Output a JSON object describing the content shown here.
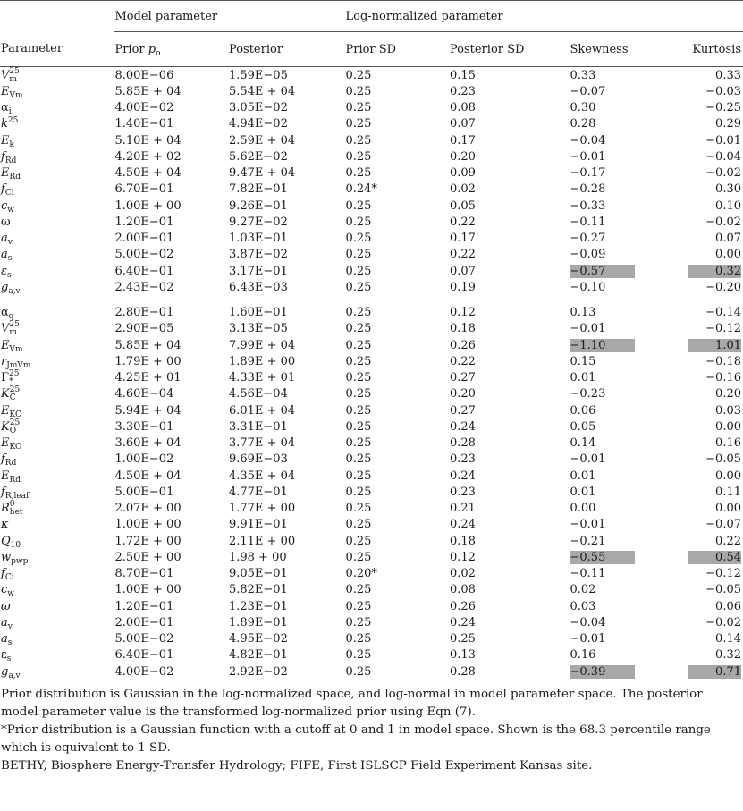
{
  "header": {
    "group_model": "Model parameter",
    "group_log": "Log-normalized parameter",
    "parameter": "Parameter",
    "prior_prefix": "Prior ",
    "prior_symbol": "p",
    "prior_sub": "o",
    "posterior": "Posterior",
    "prior_sd": "Prior SD",
    "posterior_sd": "Posterior SD",
    "skewness": "Skewness",
    "kurtosis": "Kurtosis"
  },
  "section1": [
    {
      "param": {
        "base": "V",
        "sub": "m",
        "sup": "25",
        "italic": true
      },
      "prior": "8.00E−06",
      "posterior": "1.59E−05",
      "prior_sd": "0.25",
      "posterior_sd": "0.15",
      "skewness": "0.33",
      "kurtosis": "0.33",
      "highlight": false
    },
    {
      "param": {
        "base": "E",
        "sub": "Vm",
        "italic": true
      },
      "prior": "5.85E + 04",
      "posterior": "5.54E + 04",
      "prior_sd": "0.25",
      "posterior_sd": "0.23",
      "skewness": "−0.07",
      "kurtosis": "−0.03",
      "highlight": false
    },
    {
      "param": {
        "base": "α",
        "sub": "i",
        "italic": false
      },
      "prior": "4.00E−02",
      "posterior": "3.05E−02",
      "prior_sd": "0.25",
      "posterior_sd": "0.08",
      "skewness": "0.30",
      "kurtosis": "−0.25",
      "highlight": false
    },
    {
      "param": {
        "base": "k",
        "sup": "25",
        "italic": true
      },
      "prior": "1.40E−01",
      "posterior": "4.94E−02",
      "prior_sd": "0.25",
      "posterior_sd": "0.07",
      "skewness": "0.28",
      "kurtosis": "0.29",
      "highlight": false
    },
    {
      "param": {
        "base": "E",
        "sub": "k",
        "italic": true
      },
      "prior": "5.10E + 04",
      "posterior": "2.59E + 04",
      "prior_sd": "0.25",
      "posterior_sd": "0.17",
      "skewness": "−0.04",
      "kurtosis": "−0.01",
      "highlight": false
    },
    {
      "param": {
        "base": "f",
        "sub": "Rd",
        "italic": true
      },
      "prior": "4.20E + 02",
      "posterior": "5.62E−02",
      "prior_sd": "0.25",
      "posterior_sd": "0.20",
      "skewness": "−0.01",
      "kurtosis": "−0.04",
      "highlight": false
    },
    {
      "param": {
        "base": "E",
        "sub": "Rd",
        "italic": true
      },
      "prior": "4.50E + 04",
      "posterior": "9.47E + 04",
      "prior_sd": "0.25",
      "posterior_sd": "0.09",
      "skewness": "−0.17",
      "kurtosis": "−0.02",
      "highlight": false
    },
    {
      "param": {
        "base": "f",
        "sub": "Ci",
        "italic": true
      },
      "prior": "6.70E−01",
      "posterior": "7.82E−01",
      "prior_sd": "0.24*",
      "posterior_sd": "0.02",
      "skewness": "−0.28",
      "kurtosis": "0.30",
      "highlight": false
    },
    {
      "param": {
        "base": "c",
        "sub": "w",
        "italic": true
      },
      "prior": "1.00E + 00",
      "posterior": "9.26E−01",
      "prior_sd": "0.25",
      "posterior_sd": "0.05",
      "skewness": "−0.33",
      "kurtosis": "0.10",
      "highlight": false
    },
    {
      "param": {
        "base": "ω",
        "italic": false
      },
      "prior": "1.20E−01",
      "posterior": "9.27E−02",
      "prior_sd": "0.25",
      "posterior_sd": "0.22",
      "skewness": "−0.11",
      "kurtosis": "−0.02",
      "highlight": false
    },
    {
      "param": {
        "base": "a",
        "sub": "v",
        "italic": true
      },
      "prior": "2.00E−01",
      "posterior": "1.03E−01",
      "prior_sd": "0.25",
      "posterior_sd": "0.17",
      "skewness": "−0.27",
      "kurtosis": "0.07",
      "highlight": false
    },
    {
      "param": {
        "base": "a",
        "sub": "s",
        "italic": true
      },
      "prior": "5.00E−02",
      "posterior": "3.87E−02",
      "prior_sd": "0.25",
      "posterior_sd": "0.22",
      "skewness": "−0.09",
      "kurtosis": "0.00",
      "highlight": false
    },
    {
      "param": {
        "base": "ε",
        "sub": "s",
        "italic": true
      },
      "prior": "6.40E−01",
      "posterior": "3.17E−01",
      "prior_sd": "0.25",
      "posterior_sd": "0.07",
      "skewness": "−0.57",
      "kurtosis": "0.32",
      "highlight": true
    },
    {
      "param": {
        "base": "g",
        "sub": "a,v",
        "italic": true
      },
      "prior": "2.43E−02",
      "posterior": "6.43E−03",
      "prior_sd": "0.25",
      "posterior_sd": "0.19",
      "skewness": "−0.10",
      "kurtosis": "−0.20",
      "highlight": false
    }
  ],
  "section2": [
    {
      "param": {
        "base": "α",
        "sub": "q",
        "italic": false
      },
      "prior": "2.80E−01",
      "posterior": "1.60E−01",
      "prior_sd": "0.25",
      "posterior_sd": "0.12",
      "skewness": "0.13",
      "kurtosis": "−0.14",
      "highlight": false
    },
    {
      "param": {
        "base": "V",
        "sub": "m",
        "sup": "25",
        "italic": true
      },
      "prior": "2.90E−05",
      "posterior": "3.13E−05",
      "prior_sd": "0.25",
      "posterior_sd": "0.18",
      "skewness": "−0.01",
      "kurtosis": "−0.12",
      "highlight": false
    },
    {
      "param": {
        "base": "E",
        "sub": "Vm",
        "italic": true
      },
      "prior": "5.85E + 04",
      "posterior": "7.99E + 04",
      "prior_sd": "0.25",
      "posterior_sd": "0.26",
      "skewness": "−1.10",
      "kurtosis": "1.01",
      "highlight": true
    },
    {
      "param": {
        "base": "r",
        "sub": "JmVm",
        "italic": true
      },
      "prior": "1.79E + 00",
      "posterior": "1.89E + 00",
      "prior_sd": "0.25",
      "posterior_sd": "0.22",
      "skewness": "0.15",
      "kurtosis": "−0.18",
      "highlight": false
    },
    {
      "param": {
        "base": "Γ",
        "sub": "*",
        "sup": "25",
        "italic": false
      },
      "prior": "4.25E + 01",
      "posterior": "4.33E + 01",
      "prior_sd": "0.25",
      "posterior_sd": "0.27",
      "skewness": "0.01",
      "kurtosis": "−0.16",
      "highlight": false
    },
    {
      "param": {
        "base": "K",
        "sub": "C",
        "sup": "25",
        "italic": true
      },
      "prior": "4.60E−04",
      "posterior": "4.56E−04",
      "prior_sd": "0.25",
      "posterior_sd": "0.20",
      "skewness": "−0.23",
      "kurtosis": "0.20",
      "highlight": false
    },
    {
      "param": {
        "base": "E",
        "sub": "KC",
        "italic": true
      },
      "prior": "5.94E + 04",
      "posterior": "6.01E + 04",
      "prior_sd": "0.25",
      "posterior_sd": "0.27",
      "skewness": "0.06",
      "kurtosis": "0.03",
      "highlight": false
    },
    {
      "param": {
        "base": "K",
        "sub": "O",
        "sup": "25",
        "italic": true
      },
      "prior": "3.30E−01",
      "posterior": "3.31E−01",
      "prior_sd": "0.25",
      "posterior_sd": "0.24",
      "skewness": "0.05",
      "kurtosis": "0.00",
      "highlight": false
    },
    {
      "param": {
        "base": "E",
        "sub": "KO",
        "italic": true
      },
      "prior": "3.60E + 04",
      "posterior": "3.77E + 04",
      "prior_sd": "0.25",
      "posterior_sd": "0.28",
      "skewness": "0.14",
      "kurtosis": "0.16",
      "highlight": false
    },
    {
      "param": {
        "base": "f",
        "sub": "Rd",
        "italic": true
      },
      "prior": "1.00E−02",
      "posterior": "9.69E−03",
      "prior_sd": "0.25",
      "posterior_sd": "0.23",
      "skewness": "−0.01",
      "kurtosis": "−0.05",
      "highlight": false
    },
    {
      "param": {
        "base": "E",
        "sub": "Rd",
        "italic": true
      },
      "prior": "4.50E + 04",
      "posterior": "4.35E + 04",
      "prior_sd": "0.25",
      "posterior_sd": "0.24",
      "skewness": "0.01",
      "kurtosis": "0.00",
      "highlight": false
    },
    {
      "param": {
        "base": "f",
        "sub": "R,leaf",
        "italic": true
      },
      "prior": "5.00E−01",
      "posterior": "4.77E−01",
      "prior_sd": "0.25",
      "posterior_sd": "0.23",
      "skewness": "0.01",
      "kurtosis": "0.11",
      "highlight": false
    },
    {
      "param": {
        "base": "R",
        "sub": "het",
        "sup": "0",
        "italic": true
      },
      "prior": "2.07E + 00",
      "posterior": "1.77E + 00",
      "prior_sd": "0.25",
      "posterior_sd": "0.21",
      "skewness": "0.00",
      "kurtosis": "0.00",
      "highlight": false
    },
    {
      "param": {
        "base": "κ",
        "italic": true
      },
      "prior": "1.00E + 00",
      "posterior": "9.91E−01",
      "prior_sd": "0.25",
      "posterior_sd": "0.24",
      "skewness": "−0.01",
      "kurtosis": "−0.07",
      "highlight": false
    },
    {
      "param": {
        "base": "Q",
        "sub": "10",
        "italic": true
      },
      "prior": "1.72E + 00",
      "posterior": "2.11E + 00",
      "prior_sd": "0.25",
      "posterior_sd": "0.18",
      "skewness": "−0.21",
      "kurtosis": "0.22",
      "highlight": false
    },
    {
      "param": {
        "base": "w",
        "sub": "pwp",
        "italic": true
      },
      "prior": "2.50E + 00",
      "posterior": "1.98 + 00",
      "prior_sd": "0.25",
      "posterior_sd": "0.12",
      "skewness": "−0.55",
      "kurtosis": "0.54",
      "highlight": true
    },
    {
      "param": {
        "base": "f",
        "sub": "Ci",
        "italic": true
      },
      "prior": "8.70E−01",
      "posterior": "9.05E−01",
      "prior_sd": "0.20*",
      "posterior_sd": "0.02",
      "skewness": "−0.11",
      "kurtosis": "−0.12",
      "highlight": false
    },
    {
      "param": {
        "base": "c",
        "sub": "w",
        "italic": true
      },
      "prior": "1.00E + 00",
      "posterior": "5.82E−01",
      "prior_sd": "0.25",
      "posterior_sd": "0.08",
      "skewness": "0.02",
      "kurtosis": "−0.05",
      "highlight": false
    },
    {
      "param": {
        "base": "ω",
        "italic": true
      },
      "prior": "1.20E−01",
      "posterior": "1.23E−01",
      "prior_sd": "0.25",
      "posterior_sd": "0.26",
      "skewness": "0.03",
      "kurtosis": "0.06",
      "highlight": false
    },
    {
      "param": {
        "base": "a",
        "sub": "v",
        "italic": true
      },
      "prior": "2.00E−01",
      "posterior": "1.89E−01",
      "prior_sd": "0.25",
      "posterior_sd": "0.24",
      "skewness": "−0.04",
      "kurtosis": "−0.02",
      "highlight": false
    },
    {
      "param": {
        "base": "a",
        "sub": "s",
        "italic": true
      },
      "prior": "5.00E−02",
      "posterior": "4.95E−02",
      "prior_sd": "0.25",
      "posterior_sd": "0.25",
      "skewness": "−0.01",
      "kurtosis": "0.14",
      "highlight": false
    },
    {
      "param": {
        "base": "ε",
        "sub": "s",
        "italic": false
      },
      "prior": "6.40E−01",
      "posterior": "4.82E−01",
      "prior_sd": "0.25",
      "posterior_sd": "0.13",
      "skewness": "0.16",
      "kurtosis": "0.32",
      "highlight": false
    },
    {
      "param": {
        "base": "g",
        "sub": "a,v",
        "italic": true
      },
      "prior": "4.00E−02",
      "posterior": "2.92E−02",
      "prior_sd": "0.25",
      "posterior_sd": "0.28",
      "skewness": "−0.39",
      "kurtosis": "0.71",
      "highlight": true
    }
  ],
  "footnotes": [
    "Prior distribution is Gaussian in the log-normalized space, and log-normal in model parameter space. The posterior model parameter value is the transformed log-normalized prior using Eqn (7).",
    "*Prior distribution is a Gaussian function with a cutoff at 0 and 1 in model space. Shown is the 68.3 percentile range which is equivalent to 1 SD.",
    "BETHY, Biosphere Energy-Transfer Hydrology; FIFE, First ISLSCP Field Experiment Kansas site."
  ]
}
